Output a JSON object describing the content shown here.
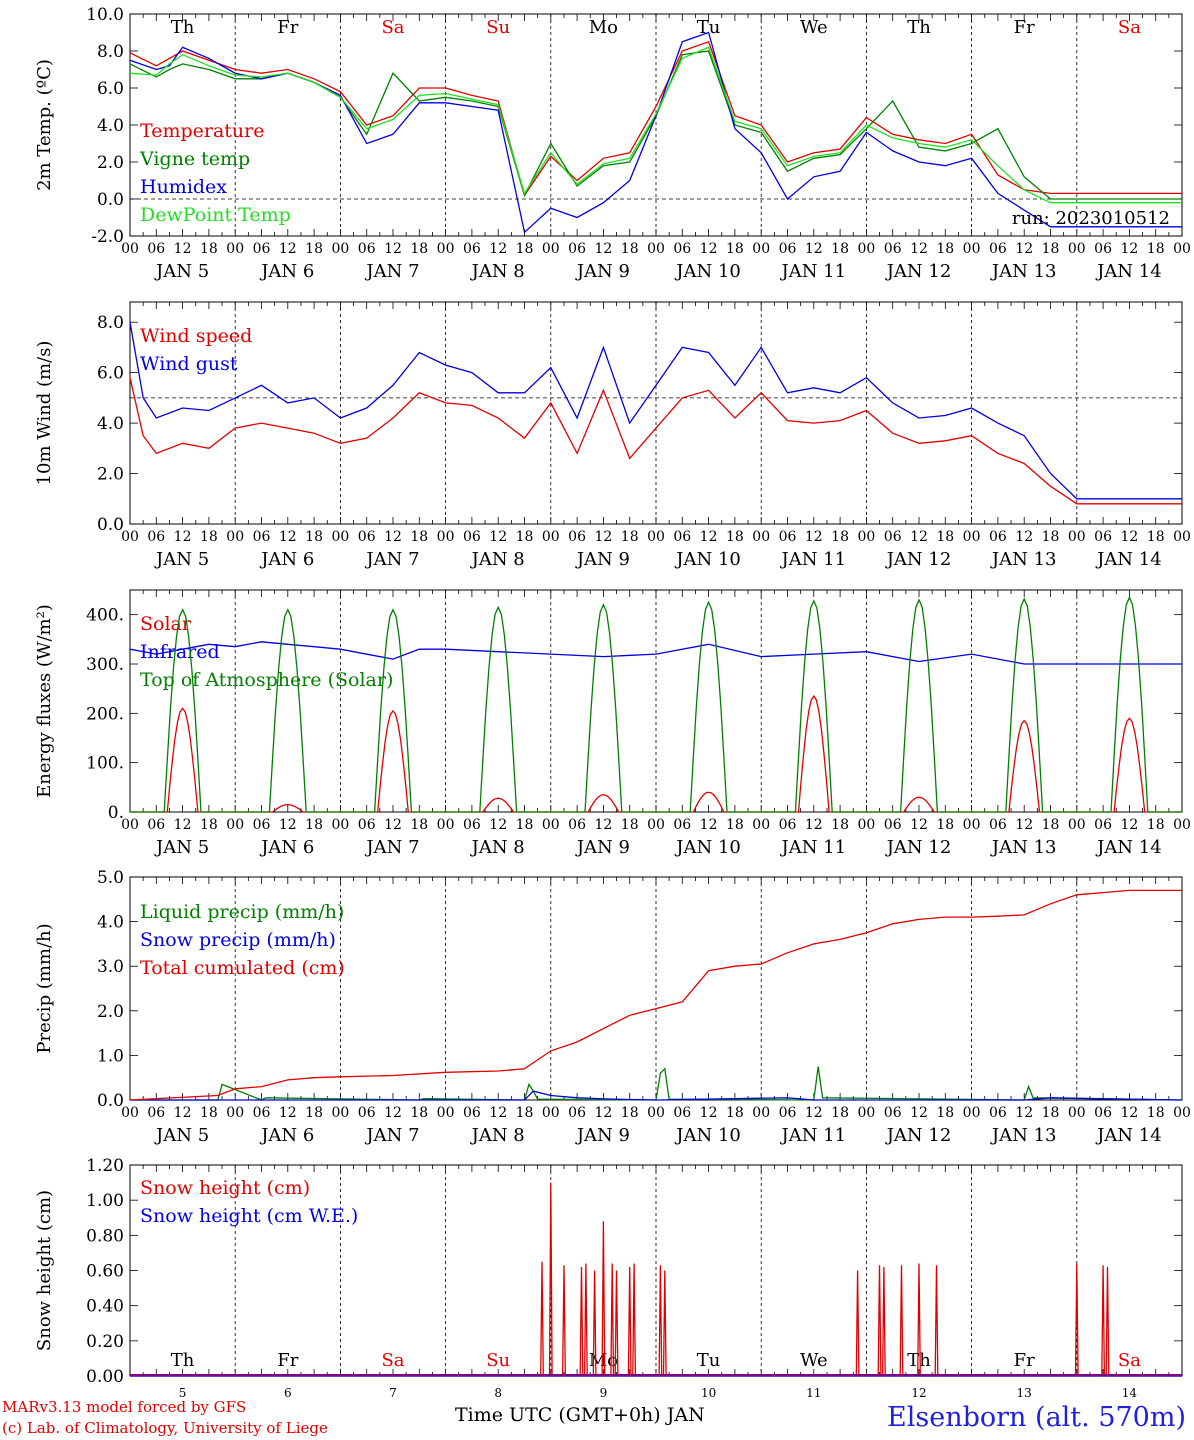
{
  "footer": {
    "model": "MARv3.13 model forced by GFS",
    "lab": "(c) Lab. of Climatology, University of Liege",
    "xlabel": "Time UTC (GMT+0h) JAN",
    "station": "Elsenborn (alt. 570m)"
  },
  "colors": {
    "red": "#e00000",
    "green": "#008000",
    "blue": "#0000e0",
    "lightgreen": "#20e020",
    "purple": "#800080"
  },
  "day_names": [
    "Th",
    "Fr",
    "Sa",
    "Su",
    "Mo",
    "Tu",
    "We",
    "Th",
    "Fr",
    "Sa"
  ],
  "weekend_flags": [
    false,
    false,
    true,
    true,
    false,
    false,
    false,
    false,
    false,
    true
  ],
  "days": [
    "5",
    "6",
    "7",
    "8",
    "9",
    "10",
    "11",
    "12",
    "13",
    "14"
  ],
  "hour_ticks": [
    "00",
    "06",
    "12",
    "18"
  ],
  "month": "JAN",
  "chart_data": [
    {
      "type": "line",
      "ylabel": "2m Temp. (ºC)",
      "ylim": [
        -2,
        10
      ],
      "yticks": [
        "-2.0",
        "0.0",
        "2.0",
        "4.0",
        "6.0",
        "8.0",
        "10.0"
      ],
      "ref_line": 0,
      "run_label": "run: 2023010512",
      "x_hours": [
        0,
        6,
        9,
        12,
        18,
        24,
        30,
        36,
        42,
        48,
        54,
        60,
        66,
        72,
        78,
        84,
        90,
        96,
        102,
        108,
        114,
        120,
        126,
        132,
        138,
        144,
        150,
        156,
        162,
        168,
        174,
        180,
        186,
        192,
        198,
        204,
        210,
        216,
        222,
        228,
        234,
        240
      ],
      "series": [
        {
          "name": "Temperature",
          "color": "red",
          "values": [
            7.9,
            7.2,
            7.6,
            8.0,
            7.5,
            7.0,
            6.8,
            7.0,
            6.5,
            5.8,
            4.0,
            4.5,
            6.0,
            6.0,
            5.6,
            5.3,
            0.2,
            2.3,
            1.0,
            2.2,
            2.5,
            5.0,
            8.0,
            8.5,
            4.5,
            4.0,
            2.0,
            2.5,
            2.7,
            4.4,
            3.5,
            3.2,
            3.0,
            3.5,
            1.3,
            0.5,
            0.3,
            0.3,
            0.3,
            0.3,
            0.3,
            0.3
          ]
        },
        {
          "name": "Vigne temp",
          "color": "green",
          "values": [
            7.3,
            6.6,
            7.0,
            7.3,
            7.0,
            6.5,
            6.5,
            6.8,
            6.3,
            5.5,
            3.5,
            6.8,
            5.3,
            5.5,
            5.3,
            5.0,
            0.2,
            3.0,
            0.7,
            1.8,
            2.0,
            4.5,
            7.8,
            8.0,
            4.0,
            3.6,
            1.5,
            2.2,
            2.4,
            3.8,
            5.3,
            2.8,
            2.6,
            3.0,
            3.8,
            1.2,
            0.0,
            0.0,
            0.0,
            0.0,
            0.0,
            0.0
          ]
        },
        {
          "name": "Humidex",
          "color": "blue",
          "values": [
            7.5,
            7.0,
            7.2,
            8.2,
            7.6,
            6.8,
            6.5,
            6.8,
            6.3,
            5.6,
            3.0,
            3.5,
            5.2,
            5.2,
            5.0,
            4.8,
            -1.8,
            -0.5,
            -1.0,
            -0.2,
            1.0,
            4.5,
            8.5,
            9.0,
            3.8,
            2.5,
            0.0,
            1.2,
            1.5,
            3.6,
            2.6,
            2.0,
            1.8,
            2.2,
            0.3,
            -0.6,
            -1.5,
            -1.5,
            -1.5,
            -1.5,
            -1.5,
            -1.5
          ]
        },
        {
          "name": "DewPoint Temp",
          "color": "lightgreen",
          "values": [
            6.8,
            6.7,
            7.3,
            7.8,
            7.2,
            6.7,
            6.6,
            6.8,
            6.3,
            5.5,
            3.8,
            4.3,
            5.6,
            5.7,
            5.4,
            5.1,
            0.3,
            2.5,
            0.8,
            1.9,
            2.2,
            4.6,
            7.6,
            8.2,
            4.2,
            3.8,
            1.8,
            2.3,
            2.5,
            4.0,
            3.3,
            3.0,
            2.8,
            3.2,
            1.8,
            0.5,
            -0.2,
            -0.2,
            -0.2,
            -0.2,
            -0.2,
            -0.2
          ]
        }
      ]
    },
    {
      "type": "line",
      "ylabel": "10m Wind (m/s)",
      "ylim": [
        0,
        8.8
      ],
      "yticks": [
        "0.0",
        "2.0",
        "4.0",
        "6.0",
        "8.0"
      ],
      "ref_line": 5,
      "x_hours": [
        0,
        3,
        6,
        12,
        18,
        24,
        30,
        36,
        42,
        48,
        54,
        60,
        66,
        72,
        78,
        84,
        90,
        96,
        102,
        108,
        114,
        120,
        126,
        132,
        138,
        144,
        150,
        156,
        162,
        168,
        174,
        180,
        186,
        192,
        198,
        204,
        210,
        216,
        222,
        228,
        234,
        240
      ],
      "series": [
        {
          "name": "Wind speed",
          "color": "red",
          "values": [
            5.8,
            3.5,
            2.8,
            3.2,
            3.0,
            3.8,
            4.0,
            3.8,
            3.6,
            3.2,
            3.4,
            4.2,
            5.2,
            4.8,
            4.7,
            4.2,
            3.4,
            4.8,
            2.8,
            5.3,
            2.6,
            3.8,
            5.0,
            5.3,
            4.2,
            5.2,
            4.1,
            4.0,
            4.1,
            4.5,
            3.6,
            3.2,
            3.3,
            3.5,
            2.8,
            2.4,
            1.5,
            0.8,
            0.8,
            0.8,
            0.8,
            0.8
          ]
        },
        {
          "name": "Wind gust",
          "color": "blue",
          "values": [
            8.0,
            5.0,
            4.2,
            4.6,
            4.5,
            5.0,
            5.5,
            4.8,
            5.0,
            4.2,
            4.6,
            5.5,
            6.8,
            6.3,
            6.0,
            5.2,
            5.2,
            6.2,
            4.2,
            7.0,
            4.0,
            5.5,
            7.0,
            6.8,
            5.5,
            7.0,
            5.2,
            5.4,
            5.2,
            5.8,
            4.8,
            4.2,
            4.3,
            4.6,
            4.0,
            3.5,
            2.0,
            1.0,
            1.0,
            1.0,
            1.0,
            1.0
          ]
        }
      ]
    },
    {
      "type": "line",
      "ylabel": "Energy fluxes (W/m²)",
      "ylim": [
        0,
        450
      ],
      "yticks": [
        "0.",
        "100.",
        "200.",
        "300.",
        "400."
      ],
      "series": [
        {
          "name": "Solar",
          "color": "red",
          "peaks": [
            210,
            15,
            205,
            28,
            35,
            40,
            235,
            30,
            185,
            190
          ]
        },
        {
          "name": "Infrared",
          "color": "blue",
          "x_hours": [
            0,
            6,
            12,
            18,
            24,
            30,
            36,
            42,
            48,
            60,
            66,
            72,
            84,
            96,
            108,
            120,
            132,
            144,
            156,
            168,
            180,
            192,
            204,
            216,
            228,
            240
          ],
          "values": [
            330,
            320,
            330,
            340,
            335,
            345,
            340,
            335,
            330,
            310,
            330,
            330,
            325,
            320,
            315,
            320,
            340,
            315,
            320,
            325,
            305,
            320,
            300,
            300,
            300,
            300
          ]
        },
        {
          "name": "Top of Atmosphere (Solar)",
          "color": "green",
          "peaks": [
            410,
            410,
            410,
            415,
            420,
            425,
            428,
            430,
            432,
            435
          ]
        }
      ]
    },
    {
      "type": "line",
      "ylabel": "Precip (mm/h)",
      "ylim": [
        0,
        5
      ],
      "yticks": [
        "0.0",
        "1.0",
        "2.0",
        "3.0",
        "4.0",
        "5.0"
      ],
      "series": [
        {
          "name": "Liquid precip (mm/h)",
          "color": "green",
          "x_hours": [
            0,
            20,
            21,
            30,
            31,
            66,
            67,
            90,
            91,
            92,
            93,
            120,
            121,
            122,
            123,
            156,
            157,
            158,
            204,
            205,
            206,
            240
          ],
          "values": [
            0,
            0,
            0.35,
            0,
            0.05,
            0,
            0.03,
            0,
            0.35,
            0.2,
            0.02,
            0,
            0.6,
            0.7,
            0.02,
            0,
            0.75,
            0.05,
            0,
            0.3,
            0.05,
            0
          ]
        },
        {
          "name": "Snow precip (mm/h)",
          "color": "blue",
          "x_hours": [
            0,
            90,
            92,
            96,
            102,
            110,
            120,
            150,
            156,
            204,
            210,
            240
          ],
          "values": [
            0,
            0,
            0.2,
            0.1,
            0.05,
            0.02,
            0,
            0.05,
            0,
            0,
            0.05,
            0
          ]
        },
        {
          "name": "Total cumulated (cm)",
          "color": "red",
          "x_hours": [
            0,
            20,
            24,
            30,
            36,
            42,
            48,
            60,
            72,
            84,
            90,
            96,
            102,
            108,
            114,
            120,
            126,
            132,
            138,
            144,
            150,
            156,
            162,
            168,
            174,
            180,
            186,
            192,
            198,
            204,
            210,
            216,
            222,
            228,
            234,
            240
          ],
          "values": [
            0,
            0.1,
            0.25,
            0.3,
            0.45,
            0.5,
            0.52,
            0.55,
            0.62,
            0.65,
            0.7,
            1.1,
            1.3,
            1.6,
            1.9,
            2.05,
            2.2,
            2.9,
            3.0,
            3.05,
            3.3,
            3.5,
            3.6,
            3.75,
            3.95,
            4.05,
            4.1,
            4.1,
            4.12,
            4.15,
            4.4,
            4.6,
            4.65,
            4.7,
            4.7,
            4.7
          ]
        }
      ]
    },
    {
      "type": "line",
      "ylabel": "Snow height (cm)",
      "ylim": [
        0,
        1.2
      ],
      "yticks": [
        "0.00",
        "0.20",
        "0.40",
        "0.60",
        "0.80",
        "1.00",
        "1.20"
      ],
      "series": [
        {
          "name": "Snow height (cm)",
          "color": "red",
          "spikes": [
            [
              94,
              0.65
            ],
            [
              96,
              1.1
            ],
            [
              99,
              0.63
            ],
            [
              103,
              0.62
            ],
            [
              104,
              0.64
            ],
            [
              106,
              0.6
            ],
            [
              108,
              0.88
            ],
            [
              110,
              0.64
            ],
            [
              111,
              0.6
            ],
            [
              114,
              0.62
            ],
            [
              115,
              0.64
            ],
            [
              121,
              0.63
            ],
            [
              122,
              0.6
            ],
            [
              166,
              0.6
            ],
            [
              171,
              0.63
            ],
            [
              172,
              0.62
            ],
            [
              176,
              0.63
            ],
            [
              180,
              0.64
            ],
            [
              184,
              0.63
            ],
            [
              216,
              0.64
            ],
            [
              222,
              0.63
            ],
            [
              223,
              0.62
            ]
          ]
        },
        {
          "name": "Snow height (cm W.E.)",
          "color": "blue",
          "spikes": []
        }
      ]
    }
  ]
}
